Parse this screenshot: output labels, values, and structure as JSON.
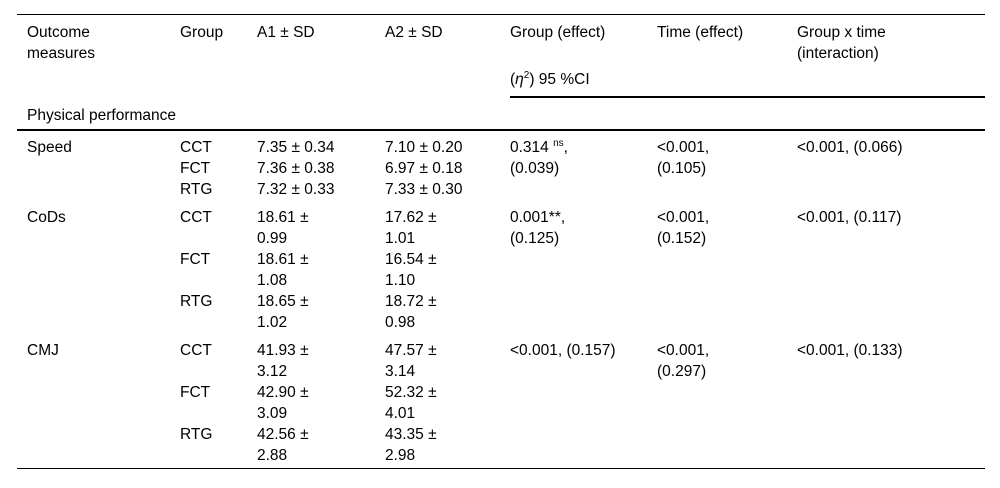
{
  "page": {
    "background": "#ffffff",
    "text_color": "#000000"
  },
  "table": {
    "columns": [
      "Outcome\nmeasures",
      "Group",
      "A1 ± SD",
      "A2 ± SD",
      "Group (effect)",
      "Time (effect)",
      "Group x time\n(interaction)"
    ],
    "subheader": {
      "open": "(",
      "symbol": "η",
      "sup": "2",
      "rest": ") 95 %CI"
    },
    "section": "Physical performance",
    "outcomes": [
      {
        "measure": "Speed",
        "groups": [
          {
            "group": "CCT",
            "a1": "7.35 ± 0.34",
            "a2": "7.10 ± 0.20"
          },
          {
            "group": "FCT",
            "a1": "7.36 ± 0.38",
            "a2": "6.97 ± 0.18"
          },
          {
            "group": "RTG",
            "a1": "7.32 ± 0.33",
            "a2": "7.33 ± 0.30"
          }
        ],
        "group_effect": {
          "main": "0.314 ",
          "sup": "ns",
          "post": ",\n(0.039)"
        },
        "time_effect": "<0.001,\n(0.105)",
        "interaction": "<0.001, (0.066)"
      },
      {
        "measure": "CoDs",
        "groups": [
          {
            "group": "CCT",
            "a1": "18.61 ±\n0.99",
            "a2": "17.62 ±\n1.01"
          },
          {
            "group": "FCT",
            "a1": "18.61 ±\n1.08",
            "a2": "16.54 ±\n1.10"
          },
          {
            "group": "RTG",
            "a1": "18.65 ±\n1.02",
            "a2": "18.72 ±\n0.98"
          }
        ],
        "group_effect": {
          "main": "0.001**",
          "sup": "",
          "post": ",\n(0.125)"
        },
        "time_effect": "<0.001,\n(0.152)",
        "interaction": "<0.001, (0.117)"
      },
      {
        "measure": "CMJ",
        "groups": [
          {
            "group": "CCT",
            "a1": "41.93 ±\n3.12",
            "a2": "47.57 ±\n3.14"
          },
          {
            "group": "FCT",
            "a1": "42.90 ±\n3.09",
            "a2": "52.32 ±\n4.01"
          },
          {
            "group": "RTG",
            "a1": "42.56 ±\n2.88",
            "a2": "43.35 ±\n2.98"
          }
        ],
        "group_effect": {
          "main": "<0.001, (0.157)",
          "sup": "",
          "post": ""
        },
        "time_effect": "<0.001,\n(0.297)",
        "interaction": "<0.001, (0.133)"
      }
    ]
  }
}
